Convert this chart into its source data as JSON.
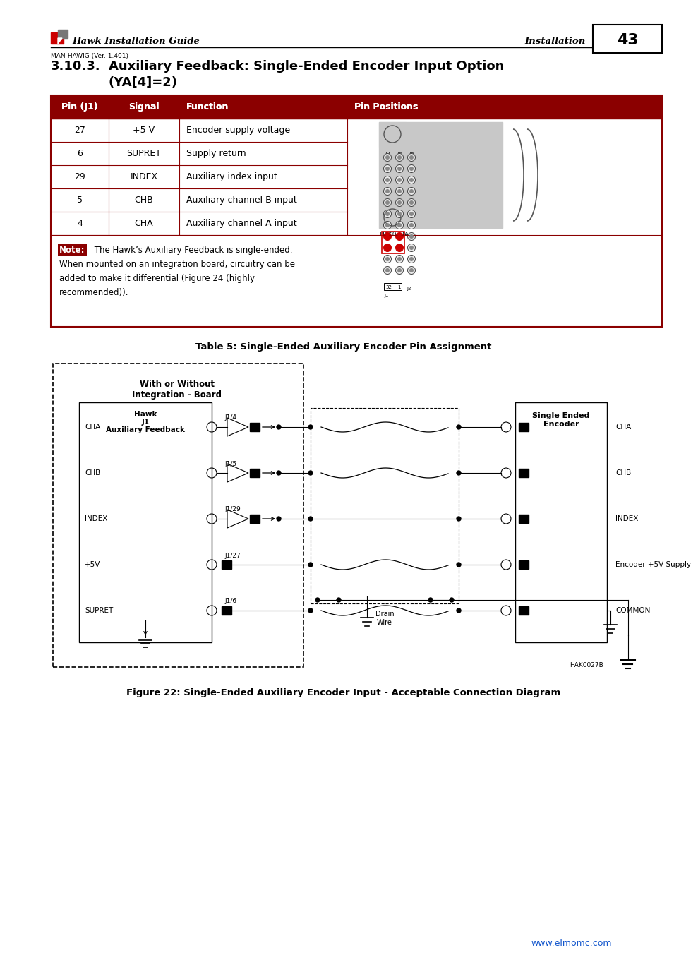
{
  "page_title": "Hawk Installation Guide",
  "page_subtitle": "MAN-HAWIG (Ver. 1.401)",
  "page_section": "Installation",
  "page_number": "43",
  "table_header": [
    "Pin (J1)",
    "Signal",
    "Function",
    "Pin Positions"
  ],
  "table_rows": [
    [
      "27",
      "+5 V",
      "Encoder supply voltage"
    ],
    [
      "6",
      "SUPRET",
      "Supply return"
    ],
    [
      "29",
      "INDEX",
      "Auxiliary index input"
    ],
    [
      "5",
      "CHB",
      "Auxiliary channel B input"
    ],
    [
      "4",
      "CHA",
      "Auxiliary channel A input"
    ]
  ],
  "note_text": "The Hawk’s Auxiliary Feedback is single-ended. When mounted on an integration board, circuitry can be added to make it differential (Figure 24 (highly recommended)).",
  "table_caption": "Table 5: Single-Ended Auxiliary Encoder Pin Assignment",
  "figure_caption": "Figure 22: Single-Ended Auxiliary Encoder Input - Acceptable Connection Diagram",
  "diagram_signals": [
    "CHA",
    "CHB",
    "INDEX",
    "+5V",
    "SUPRET"
  ],
  "diagram_pins": [
    "J1/4",
    "J1/5",
    "J1/29",
    "J1/27",
    "J1/6"
  ],
  "diagram_right_labels": [
    "CHA",
    "CHB",
    "INDEX",
    "Encoder +5V Supply",
    "COMMON"
  ],
  "hak_label_diagram": "HAK0027B",
  "hak_label_table": "HAK023A",
  "website": "www.elmomc.com",
  "header_color": "#8B0000",
  "header_text_color": "#FFFFFF",
  "table_border_color": "#8B0000",
  "note_highlight_color": "#8B0000",
  "website_color": "#1155CC",
  "background_color": "#FFFFFF"
}
